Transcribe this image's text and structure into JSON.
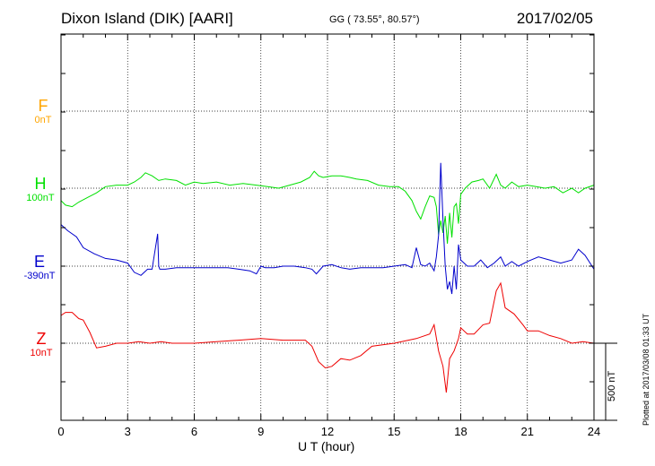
{
  "header": {
    "title": "Dixon Island (DIK)  [AARI]",
    "coords": "GG ( 73.55°,  80.57°)",
    "date": "2017/02/05"
  },
  "footer": {
    "plotted": "Plotted at 2017/03/08 01:33 UT"
  },
  "chart_data": {
    "type": "line",
    "xlabel": "U T (hour)",
    "xlim": [
      0,
      24
    ],
    "xticks": [
      "0",
      "3",
      "6",
      "9",
      "12",
      "15",
      "18",
      "21",
      "24"
    ],
    "grid": true,
    "scale_bar": "500 nT",
    "series": [
      {
        "name": "F",
        "baseline": "0nT",
        "color": "#ffa500",
        "x": [],
        "y": []
      },
      {
        "name": "H",
        "baseline": "100nT",
        "color": "#00e000",
        "x": [
          0,
          0.2,
          0.5,
          0.8,
          1.2,
          1.6,
          2.0,
          2.5,
          3.0,
          3.3,
          3.6,
          3.8,
          4.1,
          4.4,
          4.7,
          5.2,
          5.6,
          6.0,
          6.4,
          7.0,
          7.6,
          8.2,
          8.8,
          9.3,
          9.8,
          10.3,
          10.8,
          11.2,
          11.4,
          11.6,
          11.8,
          12.2,
          12.6,
          13.0,
          13.3,
          13.8,
          14.3,
          14.8,
          15.2,
          15.5,
          15.8,
          16.0,
          16.2,
          16.4,
          16.6,
          16.8,
          16.9,
          17.0,
          17.1,
          17.2,
          17.3,
          17.4,
          17.5,
          17.6,
          17.7,
          17.8,
          17.9,
          18.0,
          18.2,
          18.5,
          18.8,
          19.0,
          19.3,
          19.6,
          19.8,
          20.0,
          20.3,
          20.6,
          21.0,
          21.4,
          21.8,
          22.2,
          22.6,
          23.0,
          23.3,
          23.6,
          24.0
        ],
        "y": [
          -80,
          -110,
          -120,
          -90,
          -60,
          -30,
          10,
          20,
          20,
          40,
          70,
          100,
          80,
          50,
          60,
          50,
          20,
          40,
          30,
          40,
          20,
          30,
          20,
          10,
          0,
          20,
          40,
          70,
          110,
          80,
          70,
          80,
          80,
          70,
          60,
          50,
          20,
          10,
          10,
          -20,
          -80,
          -150,
          -200,
          -120,
          -50,
          -60,
          -120,
          -300,
          -210,
          -290,
          -180,
          -360,
          -160,
          -320,
          -120,
          -100,
          -230,
          -40,
          0,
          40,
          50,
          60,
          0,
          90,
          20,
          0,
          40,
          10,
          20,
          10,
          0,
          10,
          -30,
          0,
          -30,
          0,
          20
        ]
      },
      {
        "name": "E",
        "baseline": "-390nT",
        "color": "#0000cc",
        "x": [
          0,
          0.3,
          0.7,
          1.0,
          1.5,
          2.0,
          2.5,
          3.0,
          3.3,
          3.6,
          3.9,
          4.1,
          4.35,
          4.4,
          4.45,
          4.7,
          5.2,
          5.6,
          6.0,
          6.5,
          7.0,
          7.5,
          8.0,
          8.5,
          8.8,
          9.0,
          9.2,
          9.6,
          10.0,
          10.5,
          11.0,
          11.3,
          11.5,
          11.8,
          12.2,
          12.6,
          13.0,
          13.5,
          14.0,
          14.5,
          15.0,
          15.5,
          15.8,
          16.0,
          16.2,
          16.4,
          16.6,
          16.8,
          16.9,
          17.0,
          17.1,
          17.2,
          17.3,
          17.4,
          17.5,
          17.6,
          17.7,
          17.8,
          17.9,
          18.0,
          18.3,
          18.6,
          18.9,
          19.2,
          19.5,
          19.8,
          20.0,
          20.3,
          20.6,
          21.0,
          21.5,
          22.0,
          22.5,
          23.0,
          23.3,
          23.6,
          24.0
        ],
        "y": [
          270,
          230,
          190,
          120,
          80,
          50,
          40,
          20,
          -40,
          -60,
          -20,
          -20,
          210,
          0,
          -20,
          -20,
          -10,
          -10,
          -10,
          -10,
          -10,
          -10,
          -20,
          -30,
          -50,
          0,
          -10,
          -10,
          0,
          0,
          -10,
          -20,
          -50,
          0,
          10,
          -10,
          -20,
          -10,
          -10,
          -10,
          0,
          10,
          -10,
          120,
          10,
          0,
          20,
          -30,
          60,
          200,
          670,
          300,
          0,
          -150,
          -100,
          -180,
          0,
          -150,
          140,
          40,
          0,
          0,
          40,
          -10,
          20,
          60,
          0,
          30,
          0,
          30,
          60,
          40,
          20,
          40,
          110,
          70,
          -20
        ]
      },
      {
        "name": "Z",
        "baseline": "10nT",
        "color": "#ee0000",
        "x": [
          0,
          0.2,
          0.5,
          0.8,
          1.0,
          1.3,
          1.6,
          2.0,
          2.5,
          3.0,
          3.5,
          4.0,
          4.5,
          5.0,
          6.0,
          7.0,
          8.0,
          9.0,
          10.0,
          11.0,
          11.3,
          11.6,
          11.9,
          12.2,
          12.6,
          13.0,
          13.5,
          14.0,
          15.0,
          16.0,
          16.6,
          16.8,
          17.0,
          17.2,
          17.35,
          17.5,
          17.7,
          17.9,
          18.0,
          18.3,
          18.6,
          19.0,
          19.3,
          19.6,
          19.8,
          20.0,
          20.4,
          20.8,
          21.0,
          21.5,
          22.0,
          22.5,
          23.0,
          23.5,
          24.0
        ],
        "y": [
          180,
          200,
          200,
          160,
          150,
          70,
          -30,
          -20,
          0,
          0,
          10,
          0,
          10,
          0,
          0,
          10,
          20,
          30,
          20,
          20,
          -20,
          -120,
          -160,
          -150,
          -100,
          -110,
          -80,
          -20,
          0,
          30,
          60,
          120,
          -50,
          -150,
          -320,
          -100,
          -50,
          30,
          100,
          60,
          60,
          120,
          130,
          340,
          390,
          230,
          190,
          120,
          80,
          80,
          50,
          30,
          0,
          10,
          0
        ]
      }
    ]
  }
}
